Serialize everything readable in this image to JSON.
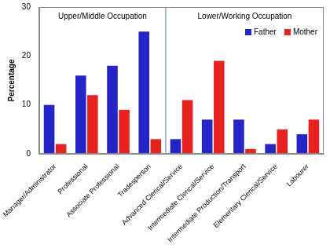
{
  "chart_data": {
    "type": "bar",
    "categories": [
      "Manager/Administrator",
      "Professional",
      "Associate Professional",
      "Tradesperson",
      "Advanced Clerical/Service",
      "Intermediate Clerical/Service",
      "Intermediate Production/Transport",
      "Elementary Clerical/Service",
      "Labourer"
    ],
    "series": [
      {
        "name": "Father",
        "color": "#2424c8",
        "values": [
          10,
          16,
          18,
          25,
          3,
          7,
          7,
          2,
          4
        ]
      },
      {
        "name": "Mother",
        "color": "#e8221e",
        "values": [
          2,
          12,
          9,
          3,
          11,
          19,
          1,
          5,
          7
        ]
      }
    ],
    "y_label": "Percentage",
    "ylim": [
      0,
      30
    ],
    "yticks": [
      0,
      10,
      20,
      30
    ],
    "grid": false,
    "legend": "top-right",
    "annotations": [
      {
        "text": "Upper/Middle Occupation",
        "from": "Manager/Administrator",
        "to": "Tradesperson"
      },
      {
        "text": "Lower/Working Occupation",
        "from": "Advanced Clerical/Service",
        "to": "Labourer"
      }
    ]
  }
}
